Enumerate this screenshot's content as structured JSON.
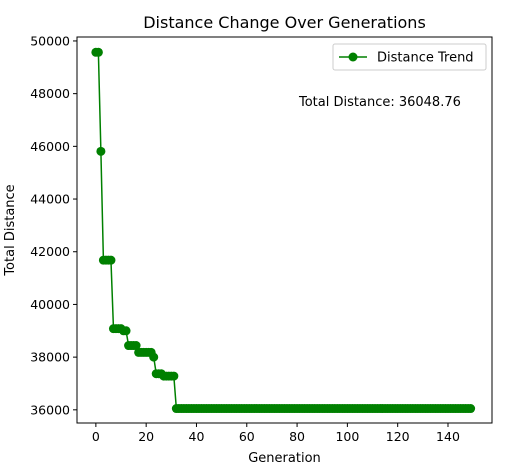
{
  "chart_data": {
    "type": "line",
    "title": "Distance Change Over Generations",
    "xlabel": "Generation",
    "ylabel": "Total Distance",
    "xlim": [
      -7.5,
      157.5
    ],
    "ylim": [
      35500,
      50150
    ],
    "xticks": [
      0,
      20,
      40,
      60,
      80,
      100,
      120,
      140
    ],
    "yticks": [
      36000,
      38000,
      40000,
      42000,
      44000,
      46000,
      48000,
      50000
    ],
    "xtick_labels": [
      "0",
      "20",
      "40",
      "60",
      "80",
      "100",
      "120",
      "140"
    ],
    "ytick_labels": [
      "36000",
      "38000",
      "40000",
      "42000",
      "44000",
      "46000",
      "48000",
      "50000"
    ],
    "grid": false,
    "legend_position": "top-right",
    "annotation": "Total Distance: 36048.76",
    "series": [
      {
        "name": "Distance Trend",
        "color": "#008000",
        "marker": "circle",
        "x": [
          0,
          1,
          2,
          3,
          4,
          5,
          6,
          7,
          8,
          9,
          10,
          11,
          12,
          13,
          14,
          15,
          16,
          17,
          18,
          19,
          20,
          21,
          22,
          23,
          24,
          25,
          26,
          27,
          28,
          29,
          30,
          31,
          32,
          33,
          34,
          35,
          36,
          37,
          38,
          39,
          40,
          41,
          42,
          43,
          44,
          45,
          46,
          47,
          48,
          49,
          50,
          51,
          52,
          53,
          54,
          55,
          56,
          57,
          58,
          59,
          60,
          61,
          62,
          63,
          64,
          65,
          66,
          67,
          68,
          69,
          70,
          71,
          72,
          73,
          74,
          75,
          76,
          77,
          78,
          79,
          80,
          81,
          82,
          83,
          84,
          85,
          86,
          87,
          88,
          89,
          90,
          91,
          92,
          93,
          94,
          95,
          96,
          97,
          98,
          99,
          100,
          101,
          102,
          103,
          104,
          105,
          106,
          107,
          108,
          109,
          110,
          111,
          112,
          113,
          114,
          115,
          116,
          117,
          118,
          119,
          120,
          121,
          122,
          123,
          124,
          125,
          126,
          127,
          128,
          129,
          130,
          131,
          132,
          133,
          134,
          135,
          136,
          137,
          138,
          139,
          140,
          141,
          142,
          143,
          144,
          145,
          146,
          147,
          148,
          149
        ],
        "y": [
          49570,
          49570,
          45810,
          41680,
          41680,
          41680,
          41680,
          39080,
          39080,
          39080,
          39080,
          39000,
          39000,
          38440,
          38440,
          38440,
          38440,
          38180,
          38180,
          38180,
          38180,
          38180,
          38180,
          38000,
          37370,
          37370,
          37370,
          37280,
          37280,
          37280,
          37280,
          37280,
          36049,
          36049,
          36049,
          36049,
          36049,
          36049,
          36049,
          36049,
          36049,
          36049,
          36049,
          36049,
          36049,
          36049,
          36049,
          36049,
          36049,
          36049,
          36049,
          36049,
          36049,
          36049,
          36049,
          36049,
          36049,
          36049,
          36049,
          36049,
          36049,
          36049,
          36049,
          36049,
          36049,
          36049,
          36049,
          36049,
          36049,
          36049,
          36049,
          36049,
          36049,
          36049,
          36049,
          36049,
          36049,
          36049,
          36049,
          36049,
          36049,
          36049,
          36049,
          36049,
          36049,
          36049,
          36049,
          36049,
          36049,
          36049,
          36049,
          36049,
          36049,
          36049,
          36049,
          36049,
          36049,
          36049,
          36049,
          36049,
          36049,
          36049,
          36049,
          36049,
          36049,
          36049,
          36049,
          36049,
          36049,
          36049,
          36049,
          36049,
          36049,
          36049,
          36049,
          36049,
          36049,
          36049,
          36049,
          36049,
          36049,
          36049,
          36049,
          36049,
          36049,
          36049,
          36049,
          36049,
          36049,
          36049,
          36049,
          36049,
          36049,
          36049,
          36049,
          36049,
          36049,
          36049,
          36049,
          36049,
          36049,
          36049,
          36049,
          36049,
          36049,
          36049,
          36049,
          36049,
          36049,
          36049
        ]
      }
    ]
  }
}
